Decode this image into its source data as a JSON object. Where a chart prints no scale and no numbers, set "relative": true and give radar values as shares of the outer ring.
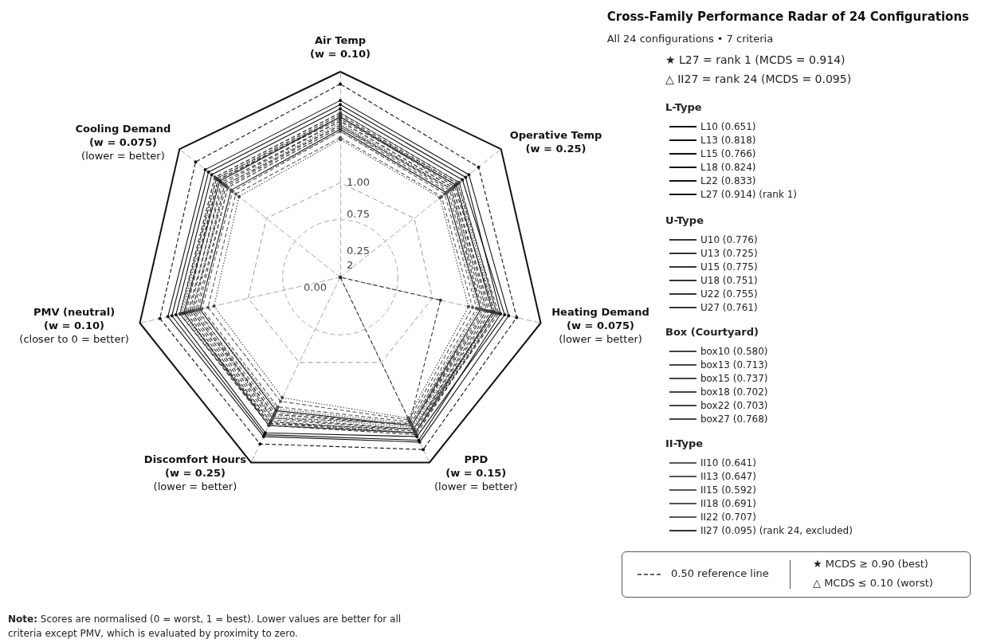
{
  "chart_data": {
    "type": "radar",
    "title": "Cross-Family Performance Radar of 24 Configurations",
    "subtitle": "All 24 configurations • 7 criteria",
    "categories": [
      "Air Temp\n(w = 0.10)",
      "Operative Temp\n(w = 0.25)",
      "Heating Demand\n(w = 0.075)\n(lower = better)",
      "PPD\n(w = 0.15)\n(lower = better)",
      "Discomfort Hours\n(w = 0.25)\n(lower = better)",
      "PMV (neutral)\n(w = 0.10)\n(closer to 0 = better)",
      "Cooling Demand\n(w = 0.075)\n(lower = better)"
    ],
    "relative": true,
    "grid": true,
    "marker": "circle",
    "legend": "right",
    "series": [
      {
        "name": "L10 (0.651)",
        "color": "#111111",
        "line_style": "solid",
        "values": [
          0.72,
          0.66,
          0.7,
          0.8,
          0.72,
          0.7,
          0.68
        ]
      },
      {
        "name": "L13 (0.818)",
        "color": "#111111",
        "line_style": "solid",
        "values": [
          0.82,
          0.76,
          0.82,
          0.86,
          0.84,
          0.82,
          0.8
        ]
      },
      {
        "name": "L15 (0.766)",
        "color": "#111111",
        "line_style": "solid",
        "values": [
          0.78,
          0.72,
          0.76,
          0.84,
          0.8,
          0.78,
          0.75
        ]
      },
      {
        "name": "L18 (0.824)",
        "color": "#111111",
        "line_style": "solid",
        "values": [
          0.84,
          0.78,
          0.8,
          0.88,
          0.85,
          0.84,
          0.82
        ]
      },
      {
        "name": "L22 (0.833)",
        "color": "#111111",
        "line_style": "solid",
        "values": [
          0.86,
          0.8,
          0.84,
          0.89,
          0.86,
          0.86,
          0.84
        ]
      },
      {
        "name": "L27 (0.914) (rank 1)",
        "color": "#111111",
        "line_style": "dashed",
        "values": [
          0.94,
          0.86,
          0.88,
          0.93,
          0.9,
          0.9,
          0.9
        ]
      },
      {
        "name": "U10 (0.776)",
        "color": "#333333",
        "line_style": "dashed",
        "values": [
          0.8,
          0.74,
          0.78,
          0.85,
          0.8,
          0.8,
          0.78
        ]
      },
      {
        "name": "U13 (0.725)",
        "color": "#333333",
        "line_style": "dashed",
        "values": [
          0.76,
          0.7,
          0.75,
          0.82,
          0.76,
          0.75,
          0.74
        ]
      },
      {
        "name": "U15 (0.775)",
        "color": "#333333",
        "line_style": "dashed",
        "values": [
          0.79,
          0.73,
          0.79,
          0.84,
          0.79,
          0.8,
          0.77
        ]
      },
      {
        "name": "U18 (0.751)",
        "color": "#333333",
        "line_style": "dashed",
        "values": [
          0.77,
          0.72,
          0.76,
          0.83,
          0.78,
          0.77,
          0.76
        ]
      },
      {
        "name": "U22 (0.755)",
        "color": "#333333",
        "line_style": "dashed",
        "values": [
          0.78,
          0.71,
          0.77,
          0.82,
          0.79,
          0.78,
          0.76
        ]
      },
      {
        "name": "U27 (0.761)",
        "color": "#333333",
        "line_style": "dotted",
        "values": [
          0.78,
          0.73,
          0.77,
          0.84,
          0.78,
          0.79,
          0.77
        ]
      },
      {
        "name": "box10 (0.580)",
        "color": "#444444",
        "line_style": "dotted",
        "values": [
          0.67,
          0.62,
          0.64,
          0.76,
          0.65,
          0.63,
          0.63
        ]
      },
      {
        "name": "box13 (0.713)",
        "color": "#444444",
        "line_style": "dotted",
        "values": [
          0.75,
          0.69,
          0.73,
          0.81,
          0.75,
          0.74,
          0.72
        ]
      },
      {
        "name": "box15 (0.737)",
        "color": "#444444",
        "line_style": "dashed",
        "values": [
          0.76,
          0.7,
          0.74,
          0.82,
          0.77,
          0.76,
          0.73
        ]
      },
      {
        "name": "box18 (0.702)",
        "color": "#444444",
        "line_style": "dashed",
        "values": [
          0.74,
          0.68,
          0.72,
          0.8,
          0.74,
          0.73,
          0.72
        ]
      },
      {
        "name": "box22 (0.703)",
        "color": "#444444",
        "line_style": "dashed",
        "values": [
          0.74,
          0.69,
          0.73,
          0.8,
          0.74,
          0.74,
          0.71
        ]
      },
      {
        "name": "box27 (0.768)",
        "color": "#444444",
        "line_style": "dashed",
        "values": [
          0.8,
          0.74,
          0.78,
          0.84,
          0.8,
          0.8,
          0.78
        ]
      },
      {
        "name": "II10 (0.641)",
        "color": "#555555",
        "line_style": "dashed",
        "values": [
          0.71,
          0.65,
          0.68,
          0.78,
          0.7,
          0.69,
          0.67
        ]
      },
      {
        "name": "II13 (0.647)",
        "color": "#555555",
        "line_style": "dotted",
        "values": [
          0.71,
          0.66,
          0.69,
          0.79,
          0.71,
          0.7,
          0.68
        ]
      },
      {
        "name": "II15 (0.592)",
        "color": "#555555",
        "line_style": "dashed",
        "values": [
          0.68,
          0.63,
          0.66,
          0.77,
          0.67,
          0.66,
          0.65
        ]
      },
      {
        "name": "II18 (0.691)",
        "color": "#555555",
        "line_style": "dashed",
        "values": [
          0.73,
          0.67,
          0.71,
          0.8,
          0.73,
          0.72,
          0.7
        ]
      },
      {
        "name": "II22 (0.707)",
        "color": "#555555",
        "line_style": "dashed",
        "values": [
          0.73,
          0.69,
          0.7,
          0.79,
          0.76,
          0.71,
          0.7
        ]
      },
      {
        "name": "II27 (0.095) (rank 24, excluded)",
        "color": "#333333",
        "line_style": "dashed",
        "values": [
          0,
          0,
          0.5,
          0.78,
          0,
          0,
          0
        ]
      }
    ],
    "annotations": [
      "★ L27 = rank 1 (MCDS = 0.914)",
      "△ II27 = rank 24 (MCDS = 0.095)",
      "L-Type",
      "U-Type",
      "Box (Courtyard)",
      "II-Type",
      "★ MCDS ≥ 0.90 (best)",
      "△ MCDS ≤ 0.10 (worst)",
      "Note: Scores are normalised (0 = worst, 1 = best). Lower values are better for all criteria except PMV, which is evaluated by proximity to zero.",
      "1.00",
      "0.75",
      "0.25",
      "2",
      "0.00",
      "0.50 reference line"
    ]
  }
}
